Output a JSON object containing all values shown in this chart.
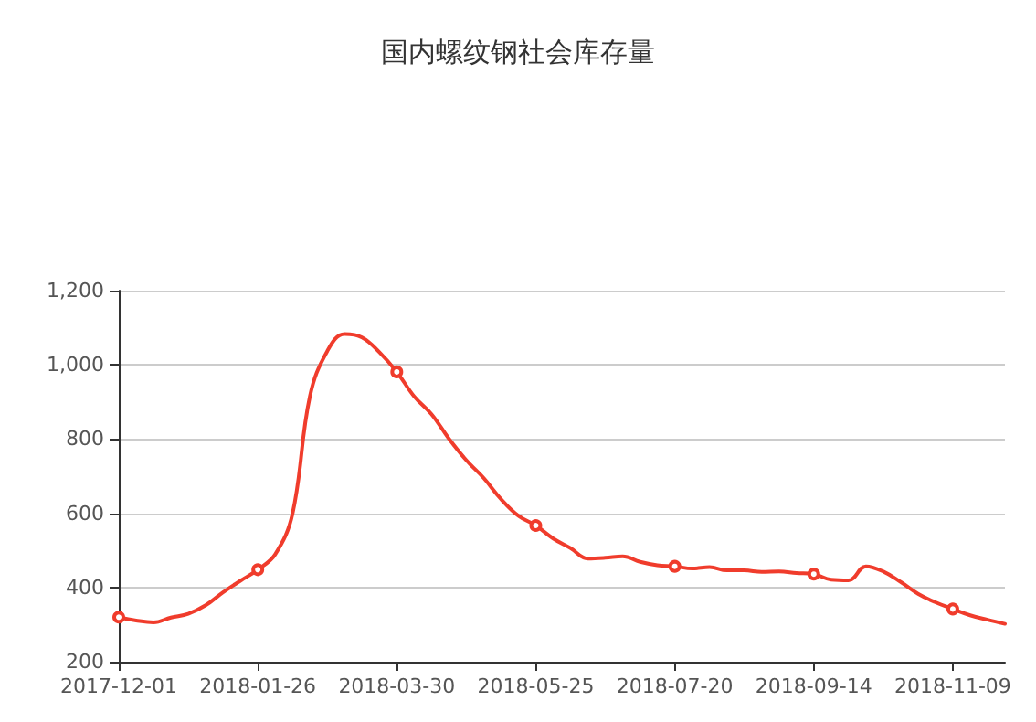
{
  "chart_data": {
    "type": "line",
    "title": "国内螺纹钢社会库存量",
    "categories": [
      "2017-12-01",
      null,
      null,
      null,
      null,
      null,
      null,
      null,
      "2018-01-26",
      null,
      null,
      null,
      null,
      null,
      null,
      null,
      "2018-03-30",
      null,
      null,
      null,
      null,
      null,
      null,
      null,
      "2018-05-25",
      null,
      null,
      null,
      null,
      null,
      null,
      null,
      "2018-07-20",
      null,
      null,
      null,
      null,
      null,
      null,
      null,
      "2018-09-14",
      null,
      null,
      null,
      null,
      null,
      null,
      null,
      "2018-11-09",
      null,
      null,
      null
    ],
    "series": [
      {
        "color": "#f03c2c",
        "values": [
          320,
          311,
          306,
          319,
          329,
          352,
          387,
          418,
          448,
          489,
          599,
          915,
          1037,
          1083,
          1074,
          1034,
          981,
          915,
          867,
          801,
          743,
          695,
          638,
          593,
          567,
          532,
          506,
          478,
          480,
          484,
          469,
          460,
          457,
          451,
          455,
          446,
          446,
          442,
          443,
          439,
          436,
          421,
          419,
          457,
          443,
          415,
          383,
          360,
          342,
          325,
          313,
          302
        ]
      }
    ],
    "ylim": [
      200,
      1200
    ],
    "yticks": [
      200,
      400,
      600,
      800,
      {
        "value": 1000,
        "label": "1,000"
      },
      {
        "value": 1200,
        "label": "1,200"
      }
    ],
    "grid": "y",
    "line_style": "solid"
  }
}
